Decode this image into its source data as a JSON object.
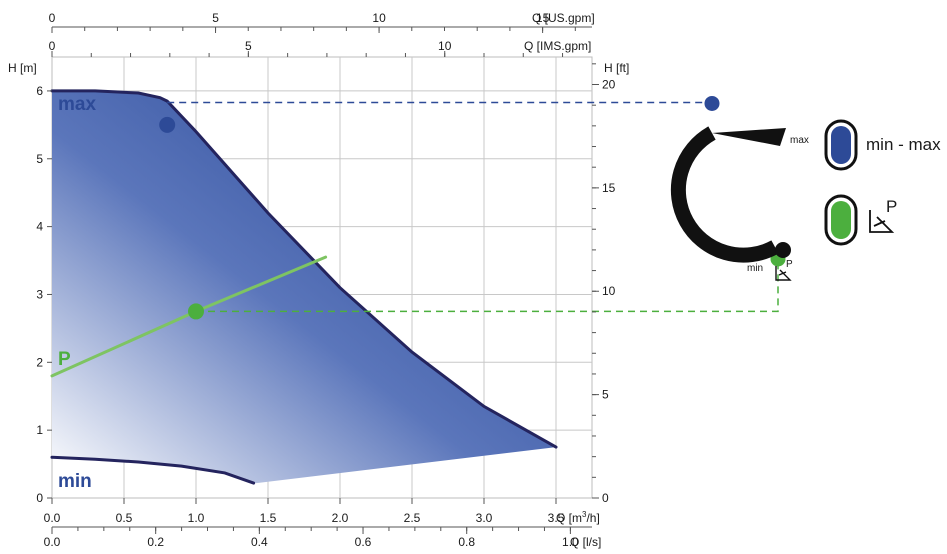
{
  "chart_data": {
    "type": "area",
    "axes": {
      "x_bottom_m3h": {
        "label": "Q [m³/h]",
        "unit_label": "Q",
        "range": [
          0,
          3.75
        ],
        "ticks": [
          {
            "v": 0,
            "t": "0.0"
          },
          {
            "v": 0.5,
            "t": "0.5"
          },
          {
            "v": 1.0,
            "t": "1.0"
          },
          {
            "v": 1.5,
            "t": "1.5"
          },
          {
            "v": 2.0,
            "t": "2.0"
          },
          {
            "v": 2.5,
            "t": "2.5"
          },
          {
            "v": 3.0,
            "t": "3.0"
          },
          {
            "v": 3.5,
            "t": "3.5"
          }
        ],
        "label_prefix": "Q  [m",
        "label_sup": "3",
        "label_suffix": "/h]"
      },
      "x_bottom_ls": {
        "label": "Q  [l/s]",
        "range": [
          0,
          1.0417
        ],
        "ticks": [
          {
            "v": 0,
            "t": "0.0"
          },
          {
            "v": 0.2,
            "t": "0.2"
          },
          {
            "v": 0.4,
            "t": "0.4"
          },
          {
            "v": 0.6,
            "t": "0.6"
          },
          {
            "v": 0.8,
            "t": "0.8"
          },
          {
            "v": 1.0,
            "t": "1.0"
          }
        ]
      },
      "x_top_usgpm": {
        "label": "Q  [US.gpm]",
        "range": [
          0,
          16.51
        ],
        "ticks": [
          {
            "v": 0,
            "t": "0"
          },
          {
            "v": 5,
            "t": "5"
          },
          {
            "v": 10,
            "t": "10"
          },
          {
            "v": 15,
            "t": "15"
          }
        ]
      },
      "x_top_imsgpm": {
        "label": "Q  [IMS.gpm]",
        "range": [
          0,
          13.75
        ],
        "ticks": [
          {
            "v": 0,
            "t": "0"
          },
          {
            "v": 5,
            "t": "5"
          },
          {
            "v": 10,
            "t": "10"
          }
        ]
      },
      "y_left_m": {
        "label": "H  [m]",
        "range": [
          0,
          6.5
        ],
        "ticks": [
          {
            "v": 0,
            "t": "0"
          },
          {
            "v": 1,
            "t": "1"
          },
          {
            "v": 2,
            "t": "2"
          },
          {
            "v": 3,
            "t": "3"
          },
          {
            "v": 4,
            "t": "4"
          },
          {
            "v": 5,
            "t": "5"
          },
          {
            "v": 6,
            "t": "6"
          }
        ]
      },
      "y_right_ft": {
        "label": "H  [ft]",
        "range": [
          0,
          21.33
        ],
        "ticks": [
          {
            "v": 0,
            "t": "0"
          },
          {
            "v": 5,
            "t": "5"
          },
          {
            "v": 10,
            "t": "10"
          },
          {
            "v": 15,
            "t": "15"
          },
          {
            "v": 20,
            "t": "20"
          }
        ]
      }
    },
    "grid": true,
    "series": [
      {
        "name": "max",
        "color": "#2d4a97",
        "x": [
          0,
          0.3,
          0.6,
          0.75,
          0.8,
          1.0,
          1.5,
          2.0,
          2.5,
          3.0,
          3.5
        ],
        "y": [
          6.0,
          6.0,
          5.97,
          5.9,
          5.85,
          5.4,
          4.2,
          3.1,
          2.15,
          1.35,
          0.75
        ]
      },
      {
        "name": "min",
        "color": "#2d4a97",
        "x": [
          0,
          0.3,
          0.6,
          0.9,
          1.2,
          1.4
        ],
        "y": [
          0.6,
          0.57,
          0.53,
          0.47,
          0.37,
          0.22
        ]
      },
      {
        "name": "P",
        "color": "#7ec462",
        "x": [
          0,
          1.0,
          1.9
        ],
        "y": [
          1.8,
          2.75,
          3.55
        ]
      }
    ],
    "region": {
      "upper": {
        "x": [
          0,
          0.3,
          0.6,
          0.75,
          0.8,
          1.0,
          1.5,
          2.0,
          2.5,
          3.0,
          3.5
        ],
        "y": [
          6.0,
          6.0,
          5.97,
          5.9,
          5.85,
          5.4,
          4.2,
          3.1,
          2.15,
          1.35,
          0.75
        ]
      },
      "right_lower": {
        "x": [
          3.5,
          1.42
        ],
        "y": [
          0.75,
          0.22
        ]
      },
      "lower": {
        "x": [
          1.4,
          1.2,
          0.9,
          0.6,
          0.3,
          0
        ],
        "y": [
          0.22,
          0.37,
          0.47,
          0.53,
          0.57,
          0.6
        ]
      }
    },
    "points": [
      {
        "name": "max-point",
        "x": 0.8,
        "y": 5.5,
        "color": "#2d4a97"
      },
      {
        "name": "p-point",
        "x": 1.0,
        "y": 2.75,
        "color": "#4caf3e"
      }
    ],
    "guides": [
      {
        "name": "max-guide",
        "y": 5.83,
        "x_from": 0.8,
        "color": "#2d4a97"
      },
      {
        "name": "p-guide",
        "y": 2.75,
        "x_from": 1.0,
        "color": "#4caf3e"
      }
    ],
    "annotations": {
      "max_label": "max",
      "min_label": "min",
      "p_label": "P"
    }
  },
  "legend": {
    "dial_max": "max",
    "dial_min": "min",
    "dial_p_sup": "P",
    "item1_label": "min - max",
    "item1_color": "#2d4a97",
    "item2_sup": "P",
    "item2_color": "#4caf3e"
  }
}
